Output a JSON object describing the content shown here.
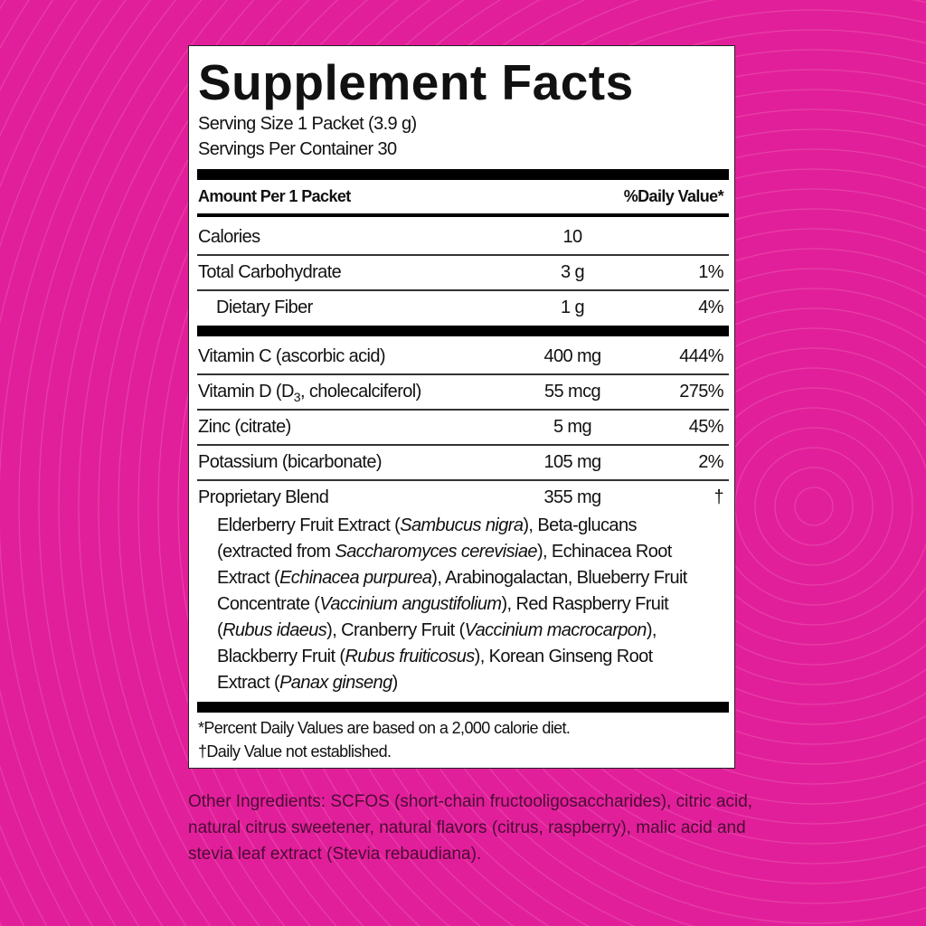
{
  "colors": {
    "background": "#e21f9a",
    "label": "#ffffff",
    "text": "#111111",
    "other_text": "#4a0c34"
  },
  "title": "Supplement Facts",
  "serving_size": "Serving Size 1 Packet (3.9 g)",
  "servings_per_container": "Servings Per Container 30",
  "header": {
    "amount": "Amount Per 1 Packet",
    "dv": "%Daily Value*"
  },
  "rows": [
    {
      "name": "Calories",
      "amount": "10",
      "dv": ""
    },
    {
      "name": "Total Carbohydrate",
      "amount": "3 g",
      "dv": "1%"
    },
    {
      "name": "Dietary Fiber",
      "amount": "1 g",
      "dv": "4%"
    },
    {
      "name": "Vitamin C (ascorbic acid)",
      "amount": "400 mg",
      "dv": "444%"
    },
    {
      "name_pre": "Vitamin D (D",
      "name_sub": "3",
      "name_post": ", cholecalciferol)",
      "amount": "55 mcg",
      "dv": "275%"
    },
    {
      "name": "Zinc (citrate)",
      "amount": "5 mg",
      "dv": "45%"
    },
    {
      "name": "Potassium (bicarbonate)",
      "amount": "105 mg",
      "dv": "2%"
    },
    {
      "name": "Proprietary Blend",
      "amount": "355 mg",
      "dv": "†"
    }
  ],
  "blend_ingredients": [
    [
      "Elderberry Fruit Extract (",
      "Sambucus nigra",
      "), Beta-glucans"
    ],
    [
      "(extracted from ",
      "Saccharomyces cerevisiae",
      "), Echinacea Root"
    ],
    [
      "Extract (",
      "Echinacea purpurea",
      "), Arabinogalactan, Blueberry Fruit"
    ],
    [
      "Concentrate (",
      "Vaccinium angustifolium",
      "), Red Raspberry Fruit"
    ],
    [
      "(",
      "Rubus idaeus",
      "), Cranberry Fruit (",
      "Vaccinium macrocarpon",
      "),"
    ],
    [
      "Blackberry Fruit (",
      "Rubus fruiticosus",
      "), Korean Ginseng Root"
    ],
    [
      "Extract (",
      "Panax ginseng",
      ")"
    ]
  ],
  "footnotes": [
    "*Percent Daily Values are based on a 2,000 calorie diet.",
    "†Daily Value not established."
  ],
  "other_ingredients": "Other Ingredients: SCFOS (short-chain fructooligosaccharides), citric acid, natural citrus sweetener, natural flavors (citrus, raspberry), malic acid and stevia leaf extract (Stevia rebaudiana)."
}
